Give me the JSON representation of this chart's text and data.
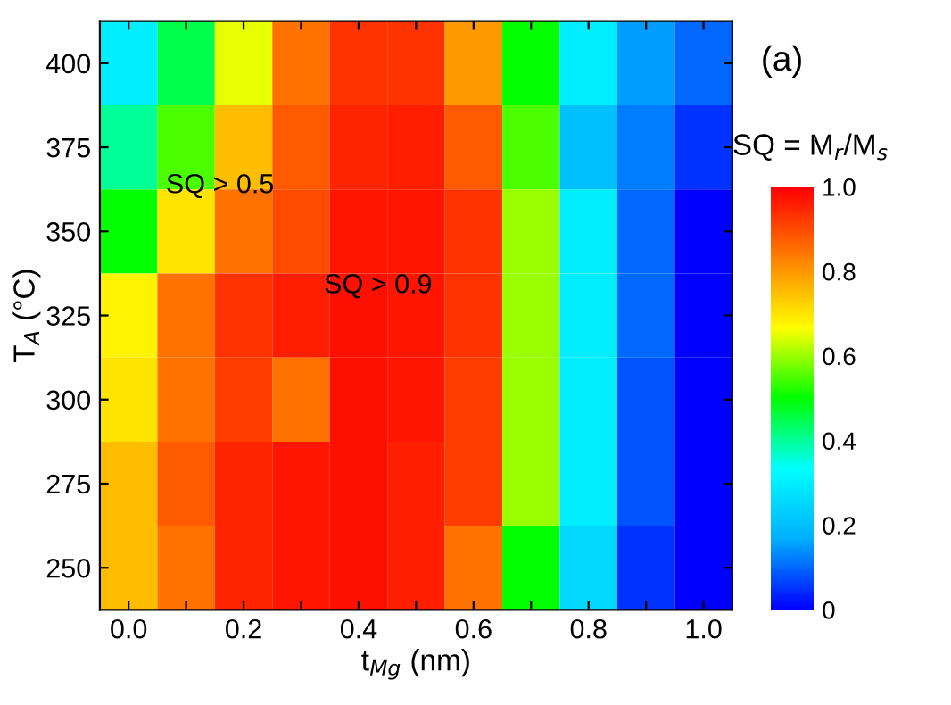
{
  "chart_data": {
    "type": "heatmap",
    "categories": [
      "0.0",
      null,
      "0.2",
      null,
      "0.4",
      null,
      "0.6",
      null,
      "0.8",
      null,
      "1.0"
    ],
    "y_categories": [
      "400",
      "375",
      "350",
      "325",
      "300",
      "275",
      "250"
    ],
    "cells": [
      [
        0.3,
        0.45,
        0.65,
        0.85,
        0.93,
        0.93,
        0.8,
        0.5,
        0.3,
        0.15,
        0.1
      ],
      [
        0.4,
        0.55,
        0.75,
        0.88,
        0.95,
        0.96,
        0.88,
        0.55,
        0.2,
        0.12,
        0.05
      ],
      [
        0.5,
        0.7,
        0.85,
        0.9,
        0.97,
        0.97,
        0.93,
        0.6,
        0.3,
        0.1,
        0
      ],
      [
        0.68,
        0.85,
        0.93,
        0.96,
        0.98,
        0.97,
        0.93,
        0.6,
        0.3,
        0.1,
        0
      ],
      [
        0.7,
        0.85,
        0.92,
        0.85,
        0.98,
        0.97,
        0.92,
        0.6,
        0.3,
        0.08,
        0
      ],
      [
        0.75,
        0.88,
        0.95,
        0.97,
        0.98,
        0.96,
        0.92,
        0.6,
        0.3,
        0.08,
        0
      ],
      [
        0.75,
        0.85,
        0.95,
        0.97,
        0.98,
        0.96,
        0.85,
        0.5,
        0.25,
        0.05,
        0
      ]
    ],
    "xlabel": "t$_{Mg}$ (nm)",
    "ylabel": "T$_{A}$ (°C)",
    "clabel": "SQ = M$_{r}$/M$_{s}$",
    "clim": [
      0,
      1.0
    ],
    "cticks": [
      0,
      0.2,
      0.4,
      0.6,
      0.8,
      {
        "value": 1.0,
        "label": "1.0"
      }
    ],
    "annotations": [
      "SQ > 0.5",
      "SQ > 0.9",
      "(a)"
    ]
  }
}
